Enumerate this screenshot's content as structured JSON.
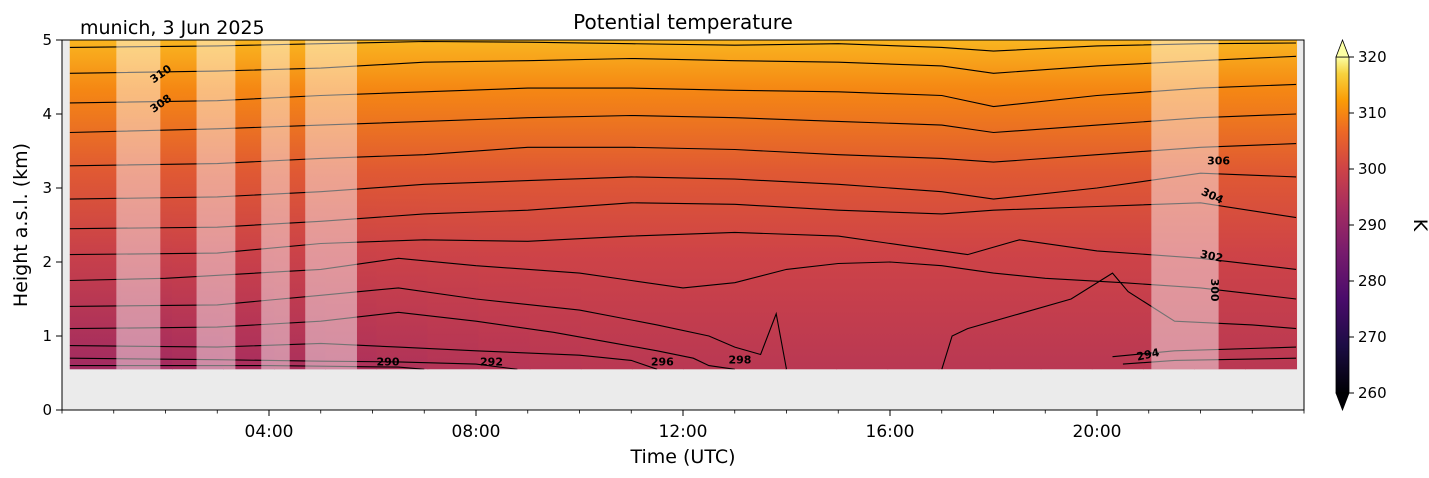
{
  "chart_data": {
    "type": "heatmap",
    "title": "Potential temperature",
    "location_date": "munich, 3 Jun 2025",
    "xlabel": "Time (UTC)",
    "ylabel": "Height a.s.l. (km)",
    "xlim_hours": [
      0,
      24
    ],
    "ylim_km": [
      0,
      5
    ],
    "x_ticks": [
      {
        "hour": 4,
        "label": "04:00"
      },
      {
        "hour": 8,
        "label": "08:00"
      },
      {
        "hour": 12,
        "label": "12:00"
      },
      {
        "hour": 16,
        "label": "16:00"
      },
      {
        "hour": 20,
        "label": "20:00"
      }
    ],
    "y_ticks": [
      {
        "km": 0,
        "label": "0"
      },
      {
        "km": 1,
        "label": "1"
      },
      {
        "km": 2,
        "label": "2"
      },
      {
        "km": 3,
        "label": "3"
      },
      {
        "km": 4,
        "label": "4"
      },
      {
        "km": 5,
        "label": "5"
      }
    ],
    "data_range": {
      "start_hour": 0.15,
      "end_hour": 23.85,
      "min_height_km": 0.55
    },
    "colorbar": {
      "label": "K",
      "min": 260,
      "max": 320,
      "extend": "both",
      "colormap": "inferno",
      "ticks": [
        {
          "value": 260,
          "label": "260"
        },
        {
          "value": 270,
          "label": "270"
        },
        {
          "value": 280,
          "label": "280"
        },
        {
          "value": 290,
          "label": "290"
        },
        {
          "value": 300,
          "label": "300"
        },
        {
          "value": 310,
          "label": "310"
        },
        {
          "value": 320,
          "label": "320"
        }
      ]
    },
    "masked_periods_hours": [
      [
        1.05,
        1.9
      ],
      [
        2.6,
        3.35
      ],
      [
        3.85,
        4.4
      ],
      [
        4.7,
        5.7
      ],
      [
        21.05,
        22.35
      ]
    ],
    "contour_levels": [
      290,
      292,
      294,
      296,
      298,
      300,
      302,
      304,
      306,
      308,
      310,
      312,
      314,
      316
    ],
    "contour_labels": [
      {
        "text": "290",
        "hour": 6.3,
        "km": 0.6,
        "rotate": 0
      },
      {
        "text": "292",
        "hour": 8.3,
        "km": 0.6,
        "rotate": 0
      },
      {
        "text": "294",
        "hour": 21.0,
        "km": 0.7,
        "rotate": -12
      },
      {
        "text": "296",
        "hour": 11.6,
        "km": 0.6,
        "rotate": 0
      },
      {
        "text": "298",
        "hour": 13.1,
        "km": 0.63,
        "rotate": 0
      },
      {
        "text": "300",
        "hour": 22.2,
        "km": 1.62,
        "rotate": 90
      },
      {
        "text": "302",
        "hour": 22.2,
        "km": 2.03,
        "rotate": 12
      },
      {
        "text": "304",
        "hour": 22.2,
        "km": 2.85,
        "rotate": 25
      },
      {
        "text": "306",
        "hour": 22.35,
        "km": 3.32,
        "rotate": 0
      },
      {
        "text": "308",
        "hour": 1.95,
        "km": 4.1,
        "rotate": -35
      },
      {
        "text": "310",
        "hour": 1.95,
        "km": 4.5,
        "rotate": -35
      }
    ],
    "contours": [
      {
        "level": 290,
        "pts": [
          [
            0.15,
            0.6
          ],
          [
            4,
            0.6
          ],
          [
            6.5,
            0.58
          ],
          [
            7,
            0.55
          ]
        ]
      },
      {
        "level": 292,
        "pts": [
          [
            0.15,
            0.7
          ],
          [
            3,
            0.68
          ],
          [
            5,
            0.66
          ],
          [
            6.5,
            0.65
          ],
          [
            8,
            0.62
          ],
          [
            8.8,
            0.55
          ]
        ]
      },
      {
        "level": 294,
        "pts": [
          [
            0.15,
            0.87
          ],
          [
            3,
            0.85
          ],
          [
            5,
            0.9
          ],
          [
            6.5,
            0.85
          ],
          [
            8,
            0.8
          ],
          [
            10,
            0.74
          ],
          [
            11,
            0.67
          ],
          [
            11.5,
            0.55
          ]
        ]
      },
      {
        "level": 294,
        "pts": [
          [
            20.5,
            0.62
          ],
          [
            21.5,
            0.67
          ],
          [
            23.85,
            0.7
          ]
        ]
      },
      {
        "level": 296,
        "pts": [
          [
            0.15,
            1.1
          ],
          [
            3,
            1.12
          ],
          [
            5,
            1.2
          ],
          [
            6.5,
            1.32
          ],
          [
            8,
            1.2
          ],
          [
            9.5,
            1.05
          ],
          [
            10.7,
            0.9
          ],
          [
            11.5,
            0.8
          ],
          [
            12.2,
            0.7
          ],
          [
            12.5,
            0.6
          ],
          [
            13,
            0.55
          ]
        ]
      },
      {
        "level": 296,
        "pts": [
          [
            20.3,
            0.72
          ],
          [
            21.5,
            0.8
          ],
          [
            23.85,
            0.85
          ]
        ]
      },
      {
        "level": 298,
        "pts": [
          [
            0.15,
            1.4
          ],
          [
            3,
            1.42
          ],
          [
            5,
            1.55
          ],
          [
            6.5,
            1.65
          ],
          [
            8,
            1.5
          ],
          [
            10,
            1.35
          ],
          [
            11.5,
            1.15
          ],
          [
            12.5,
            1.0
          ],
          [
            13,
            0.85
          ],
          [
            13.5,
            0.75
          ],
          [
            13.8,
            1.3
          ],
          [
            14,
            0.55
          ]
        ]
      },
      {
        "level": 298,
        "pts": [
          [
            17,
            0.55
          ],
          [
            17.2,
            1.0
          ],
          [
            17.5,
            1.1
          ],
          [
            18.5,
            1.3
          ],
          [
            19.5,
            1.5
          ],
          [
            20.3,
            1.85
          ],
          [
            20.6,
            1.6
          ],
          [
            21.5,
            1.2
          ],
          [
            23,
            1.15
          ],
          [
            23.85,
            1.1
          ]
        ]
      },
      {
        "level": 300,
        "pts": [
          [
            0.15,
            1.75
          ],
          [
            2,
            1.78
          ],
          [
            5,
            1.9
          ],
          [
            6.5,
            2.05
          ],
          [
            8,
            1.95
          ],
          [
            10,
            1.85
          ],
          [
            11,
            1.75
          ],
          [
            12,
            1.65
          ],
          [
            13,
            1.72
          ],
          [
            14,
            1.9
          ],
          [
            15,
            1.98
          ],
          [
            16,
            2.0
          ],
          [
            17,
            1.95
          ],
          [
            18,
            1.85
          ],
          [
            19,
            1.78
          ],
          [
            20.5,
            1.72
          ],
          [
            22,
            1.65
          ],
          [
            23.85,
            1.5
          ]
        ]
      },
      {
        "level": 302,
        "pts": [
          [
            0.15,
            2.1
          ],
          [
            3,
            2.12
          ],
          [
            5,
            2.25
          ],
          [
            7,
            2.3
          ],
          [
            9,
            2.28
          ],
          [
            11,
            2.35
          ],
          [
            13,
            2.4
          ],
          [
            15,
            2.35
          ],
          [
            16.5,
            2.2
          ],
          [
            17.5,
            2.1
          ],
          [
            18.5,
            2.3
          ],
          [
            20,
            2.15
          ],
          [
            22,
            2.05
          ],
          [
            23.85,
            1.9
          ]
        ]
      },
      {
        "level": 304,
        "pts": [
          [
            0.15,
            2.45
          ],
          [
            3,
            2.47
          ],
          [
            5,
            2.55
          ],
          [
            7,
            2.65
          ],
          [
            9,
            2.7
          ],
          [
            11,
            2.8
          ],
          [
            13,
            2.78
          ],
          [
            15,
            2.7
          ],
          [
            17,
            2.65
          ],
          [
            18,
            2.7
          ],
          [
            20,
            2.75
          ],
          [
            22,
            2.8
          ],
          [
            23.85,
            2.6
          ]
        ]
      },
      {
        "level": 306,
        "pts": [
          [
            0.15,
            2.85
          ],
          [
            3,
            2.88
          ],
          [
            5,
            2.95
          ],
          [
            7,
            3.05
          ],
          [
            9,
            3.1
          ],
          [
            11,
            3.15
          ],
          [
            13,
            3.12
          ],
          [
            15,
            3.05
          ],
          [
            17,
            2.95
          ],
          [
            18,
            2.85
          ],
          [
            20,
            3.0
          ],
          [
            22,
            3.2
          ],
          [
            23.85,
            3.15
          ]
        ]
      },
      {
        "level": 308,
        "pts": [
          [
            0.15,
            3.3
          ],
          [
            3,
            3.33
          ],
          [
            5,
            3.4
          ],
          [
            7,
            3.45
          ],
          [
            9,
            3.55
          ],
          [
            11,
            3.55
          ],
          [
            13,
            3.52
          ],
          [
            15,
            3.45
          ],
          [
            17,
            3.4
          ],
          [
            18,
            3.35
          ],
          [
            20,
            3.45
          ],
          [
            22,
            3.55
          ],
          [
            23.85,
            3.6
          ]
        ]
      },
      {
        "level": 310,
        "pts": [
          [
            0.15,
            3.75
          ],
          [
            3,
            3.8
          ],
          [
            5,
            3.85
          ],
          [
            7,
            3.9
          ],
          [
            9,
            3.95
          ],
          [
            11,
            3.98
          ],
          [
            13,
            3.95
          ],
          [
            15,
            3.9
          ],
          [
            17,
            3.85
          ],
          [
            18,
            3.75
          ],
          [
            20,
            3.85
          ],
          [
            22,
            3.95
          ],
          [
            23.85,
            4.0
          ]
        ]
      },
      {
        "level": 312,
        "pts": [
          [
            0.15,
            4.15
          ],
          [
            3,
            4.18
          ],
          [
            5,
            4.25
          ],
          [
            7,
            4.3
          ],
          [
            9,
            4.35
          ],
          [
            11,
            4.35
          ],
          [
            13,
            4.32
          ],
          [
            15,
            4.3
          ],
          [
            17,
            4.25
          ],
          [
            18,
            4.1
          ],
          [
            20,
            4.25
          ],
          [
            22,
            4.35
          ],
          [
            23.85,
            4.4
          ]
        ]
      },
      {
        "level": 314,
        "pts": [
          [
            0.15,
            4.55
          ],
          [
            3,
            4.58
          ],
          [
            5,
            4.62
          ],
          [
            7,
            4.7
          ],
          [
            9,
            4.72
          ],
          [
            11,
            4.75
          ],
          [
            13,
            4.72
          ],
          [
            15,
            4.7
          ],
          [
            17,
            4.65
          ],
          [
            18,
            4.55
          ],
          [
            20,
            4.65
          ],
          [
            22,
            4.72
          ],
          [
            23.85,
            4.78
          ]
        ]
      },
      {
        "level": 316,
        "pts": [
          [
            0.15,
            4.9
          ],
          [
            3,
            4.92
          ],
          [
            5,
            4.95
          ],
          [
            7,
            4.98
          ],
          [
            9,
            4.97
          ],
          [
            11,
            4.95
          ],
          [
            13,
            4.93
          ],
          [
            15,
            4.95
          ],
          [
            17,
            4.9
          ],
          [
            18,
            4.85
          ],
          [
            20,
            4.92
          ],
          [
            22,
            4.95
          ],
          [
            23.85,
            4.96
          ]
        ]
      }
    ]
  }
}
